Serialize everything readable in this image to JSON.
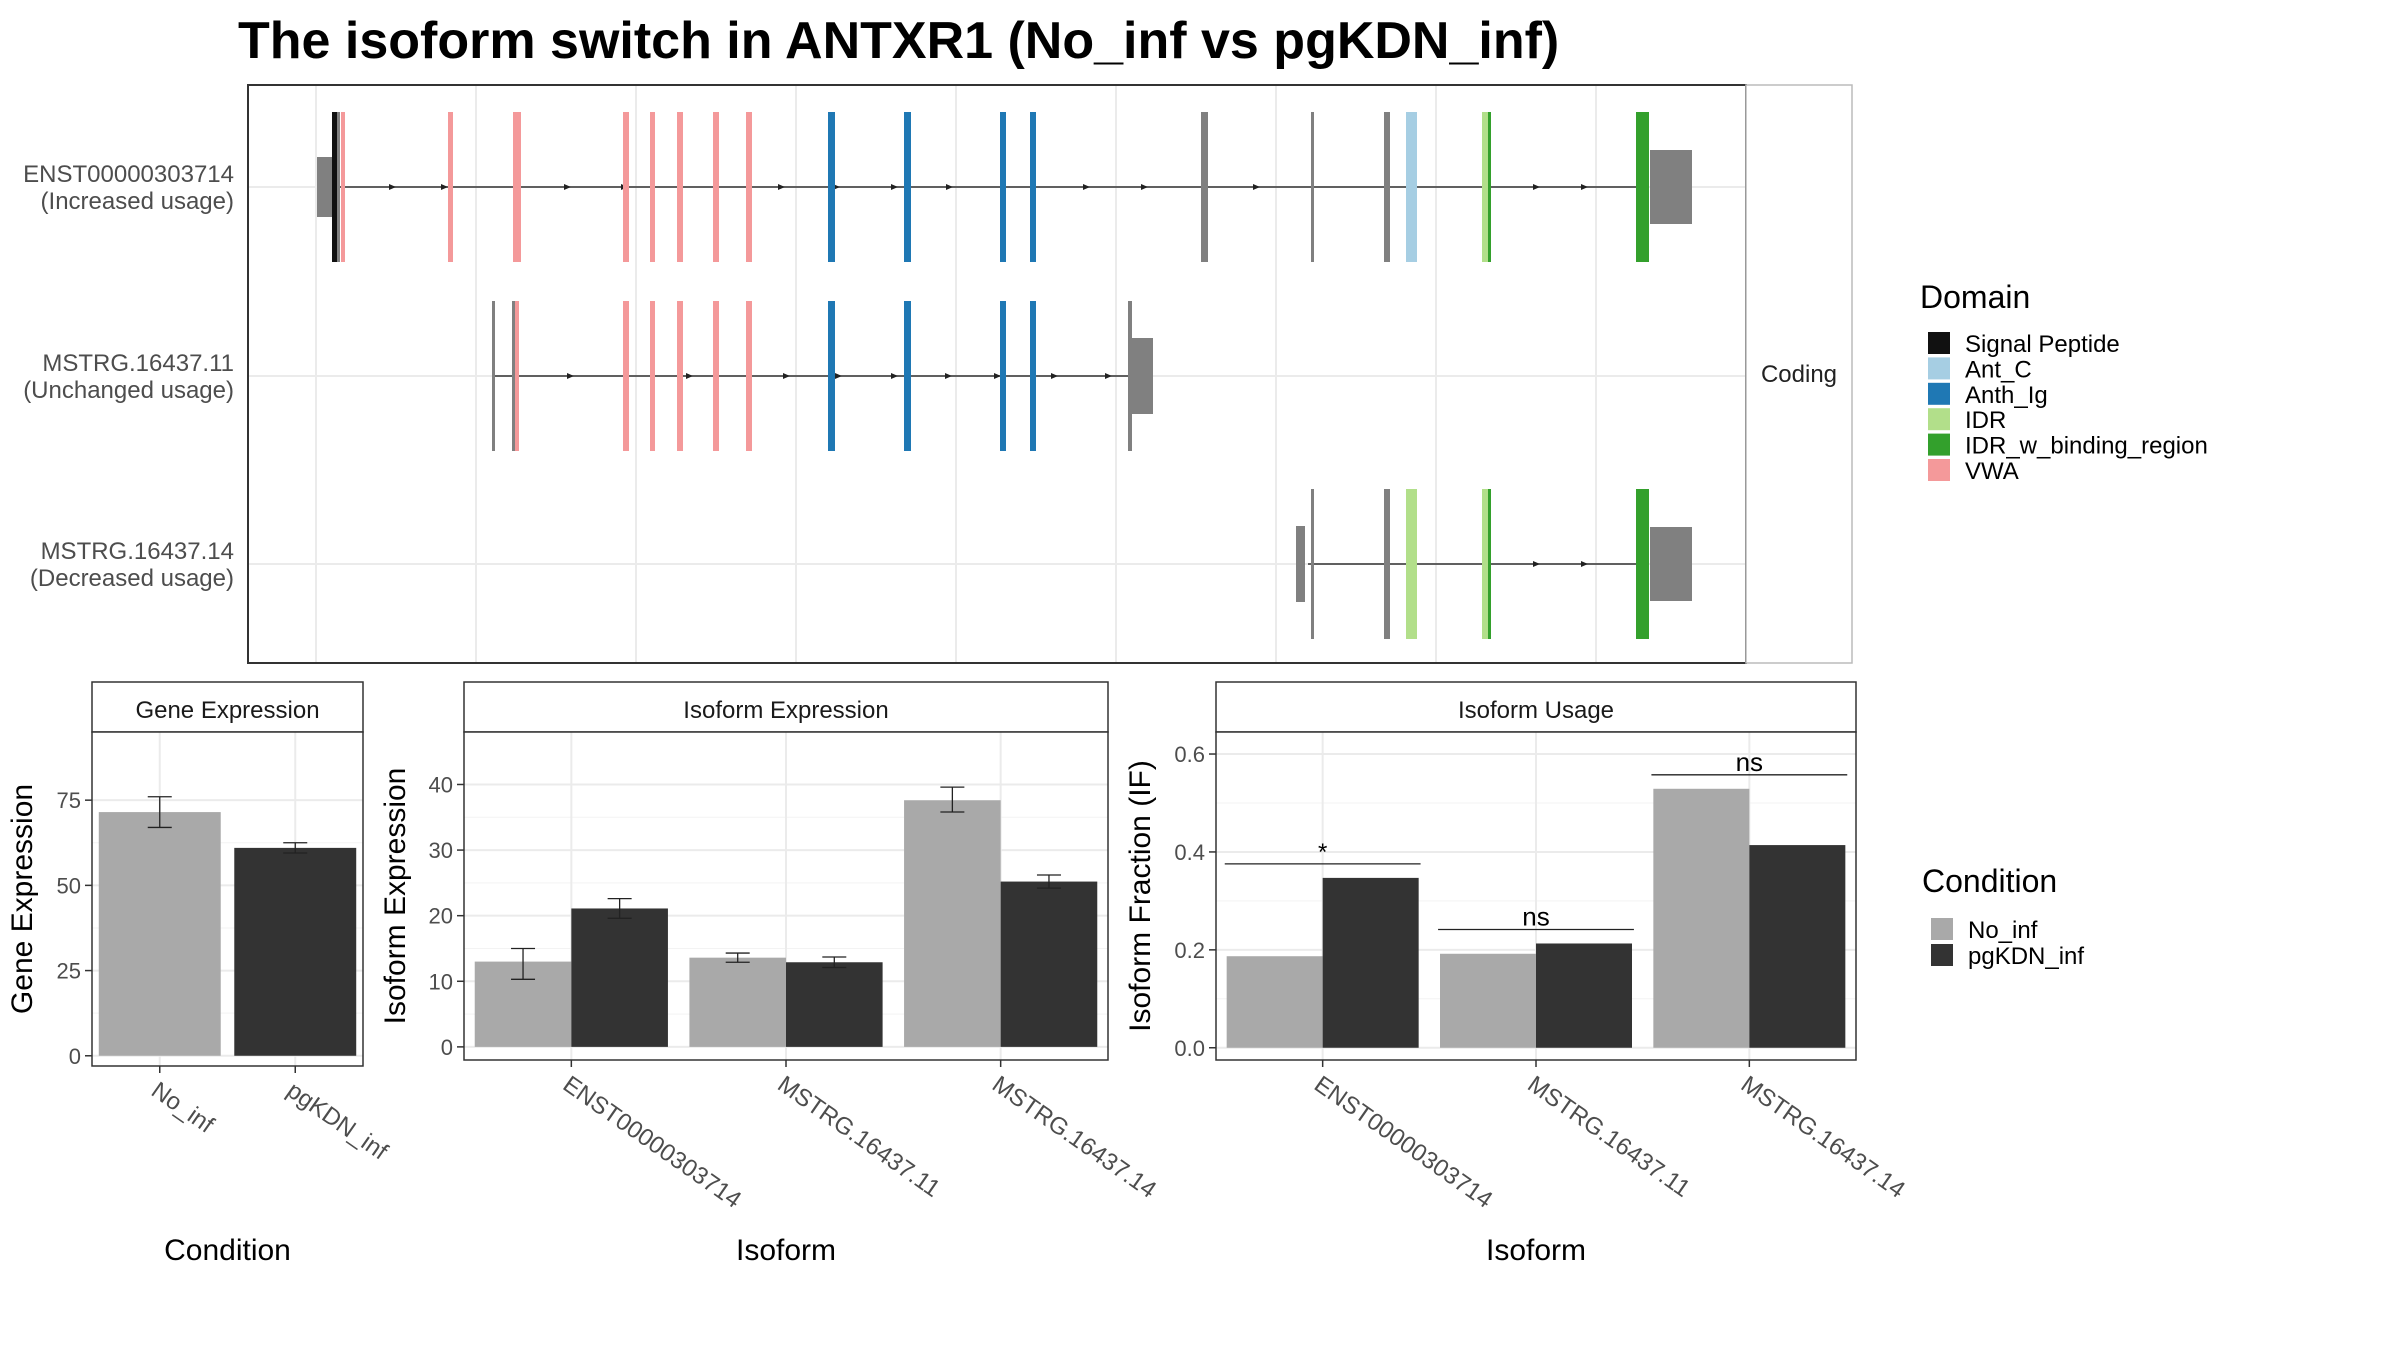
{
  "title": "The isoform switch in ANTXR1 (No_inf vs pgKDN_inf)",
  "colors": {
    "signal_peptide": "#111111",
    "ant_c": "#a6cee3",
    "anth_ig": "#1f78b4",
    "idr": "#b2df8a",
    "idr_w_binding_region": "#33a02c",
    "vwa": "#f4999a",
    "noncoding": "#808080",
    "no_inf": "#a9a9a9",
    "pgkdn_inf": "#333333"
  },
  "structure": {
    "facet_label": "Coding",
    "legend_title": "Domain",
    "legend": [
      {
        "label": "Signal Peptide",
        "color": "#111111"
      },
      {
        "label": "Ant_C",
        "color": "#a6cee3"
      },
      {
        "label": "Anth_Ig",
        "color": "#1f78b4"
      },
      {
        "label": "IDR",
        "color": "#b2df8a"
      },
      {
        "label": "IDR_w_binding_region",
        "color": "#33a02c"
      },
      {
        "label": "VWA",
        "color": "#f4999a"
      }
    ],
    "isoforms": [
      {
        "id": "ENST00000303714",
        "usage": "(Increased usage)"
      },
      {
        "id": "MSTRG.16437.11",
        "usage": "(Unchanged usage)"
      },
      {
        "id": "MSTRG.16437.14",
        "usage": "(Decreased usage)"
      }
    ]
  },
  "condition_legend": {
    "title": "Condition",
    "items": [
      {
        "label": "No_inf",
        "color": "#a9a9a9"
      },
      {
        "label": "pgKDN_inf",
        "color": "#333333"
      }
    ]
  },
  "chart_data": [
    {
      "type": "bar",
      "title": "Gene Expression",
      "xlabel": "Condition",
      "ylabel": "Gene Expression",
      "categories": [
        "No_inf",
        "pgKDN_inf"
      ],
      "values": [
        71.5,
        61
      ],
      "errors": [
        [
          67,
          76
        ],
        [
          59.5,
          62.5
        ]
      ],
      "ylim": [
        -3,
        95
      ],
      "yticks": [
        0,
        25,
        50,
        75
      ]
    },
    {
      "type": "bar",
      "title": "Isoform Expression",
      "xlabel": "Isoform",
      "ylabel": "Isoform Expression",
      "categories": [
        "ENST00000303714",
        "MSTRG.16437.11",
        "MSTRG.16437.14"
      ],
      "series": [
        {
          "name": "No_inf",
          "values": [
            13,
            13.6,
            37.6
          ],
          "errors": [
            [
              10.3,
              15
            ],
            [
              12.9,
              14.3
            ],
            [
              35.8,
              39.6
            ]
          ]
        },
        {
          "name": "pgKDN_inf",
          "values": [
            21.1,
            12.9,
            25.2
          ],
          "errors": [
            [
              19.6,
              22.6
            ],
            [
              12.1,
              13.7
            ],
            [
              24.2,
              26.2
            ]
          ]
        }
      ],
      "ylim": [
        -2,
        48
      ],
      "yticks": [
        0,
        10,
        20,
        30,
        40
      ]
    },
    {
      "type": "bar",
      "title": "Isoform Usage",
      "xlabel": "Isoform",
      "ylabel": "Isoform Fraction (IF)",
      "categories": [
        "ENST00000303714",
        "MSTRG.16437.11",
        "MSTRG.16437.14"
      ],
      "series": [
        {
          "name": "No_inf",
          "values": [
            0.187,
            0.192,
            0.529
          ]
        },
        {
          "name": "pgKDN_inf",
          "values": [
            0.347,
            0.213,
            0.414
          ]
        }
      ],
      "significance": [
        "*",
        "ns",
        "ns"
      ],
      "ylim": [
        -0.025,
        0.645
      ],
      "yticks": [
        0.0,
        0.2,
        0.4,
        0.6
      ]
    }
  ]
}
